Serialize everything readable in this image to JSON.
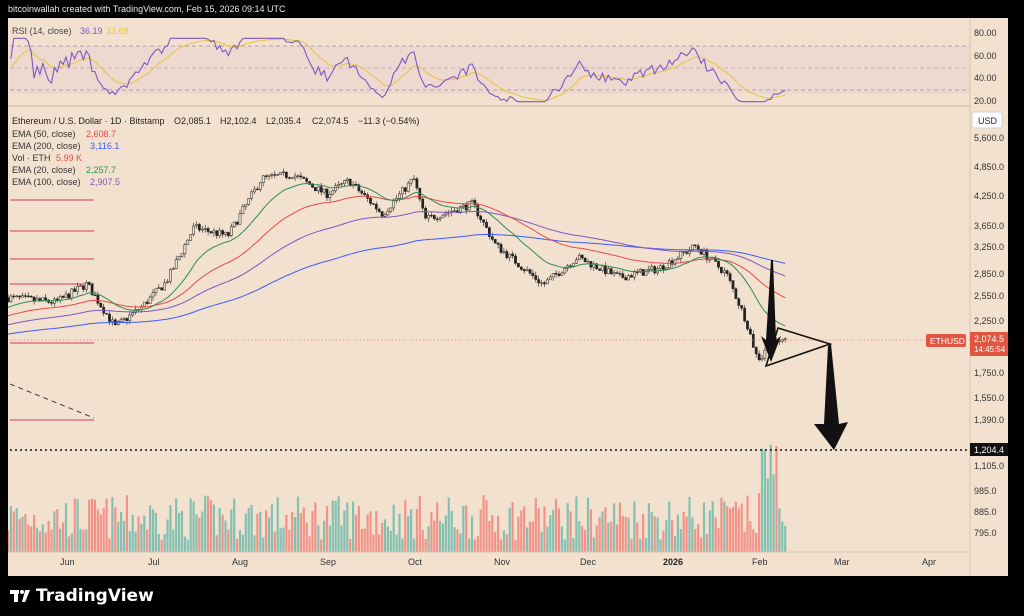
{
  "header": {
    "attribution": "bitcoinwallah created with TradingView.com, Feb 15, 2026 09:14 UTC"
  },
  "footer": {
    "brand": "TradingView"
  },
  "rsi": {
    "label": "RSI (14, close)",
    "value": "36.19",
    "signal": "33.68",
    "color": "#7e57c2",
    "signal_color": "#e8c547",
    "axis_ticks": [
      "80.00",
      "60.00",
      "40.00",
      "20.00"
    ]
  },
  "legend": {
    "symbol_line": "Ethereum / U.S. Dollar · 1D · Bitstamp",
    "ohlc": {
      "o": "O2,085.1",
      "h": "H2,102.4",
      "l": "L2,035.4",
      "c": "C2,074.5",
      "chg": "−11.3 (−0.54%)"
    },
    "indicators": [
      {
        "label": "EMA (50, close)",
        "value": "2,608.7",
        "color": "#e84a4a"
      },
      {
        "label": "EMA (200, close)",
        "value": "3,116.1",
        "color": "#3d5afe"
      },
      {
        "label": "Vol · ETH",
        "value": "5.99 K",
        "color": "#e84a4a"
      },
      {
        "label": "EMA (20, close)",
        "value": "2,257.7",
        "color": "#2e8b57"
      },
      {
        "label": "EMA (100, close)",
        "value": "2,907.5",
        "color": "#7e57c2"
      }
    ]
  },
  "price_axis": {
    "currency": "USD",
    "ticks": [
      "5,600.0",
      "4,850.0",
      "4,250.0",
      "3,650.0",
      "3,250.0",
      "2,850.0",
      "2,550.0",
      "2,250.0",
      "1,750.0",
      "1,550.0",
      "1,390.0",
      "1,105.0",
      "985.0",
      "885.0",
      "795.0"
    ],
    "current_price": "2,074.5",
    "countdown": "14:45:54",
    "symbol_tag": "ETHUSD",
    "target_level": "1,204.4"
  },
  "time_axis": {
    "labels": [
      "Jun",
      "Jul",
      "Aug",
      "Sep",
      "Oct",
      "Nov",
      "Dec",
      "2026",
      "Feb",
      "Mar",
      "Apr"
    ]
  },
  "chart_data": {
    "type": "candlestick",
    "symbol": "Ethereum / U.S. Dollar",
    "interval": "1D",
    "exchange": "Bitstamp",
    "y_scale": "log",
    "close_path": [
      [
        "2025-05-15",
        2580
      ],
      [
        "2025-06-01",
        2520
      ],
      [
        "2025-06-12",
        2760
      ],
      [
        "2025-06-22",
        2230
      ],
      [
        "2025-07-01",
        2450
      ],
      [
        "2025-07-10",
        2780
      ],
      [
        "2025-07-20",
        3650
      ],
      [
        "2025-08-01",
        3500
      ],
      [
        "2025-08-13",
        4650
      ],
      [
        "2025-08-24",
        4750
      ],
      [
        "2025-09-05",
        4300
      ],
      [
        "2025-09-13",
        4600
      ],
      [
        "2025-09-25",
        3900
      ],
      [
        "2025-10-06",
        4650
      ],
      [
        "2025-10-10",
        3800
      ],
      [
        "2025-10-27",
        4100
      ],
      [
        "2025-11-04",
        3350
      ],
      [
        "2025-11-21",
        2750
      ],
      [
        "2025-12-03",
        3150
      ],
      [
        "2025-12-18",
        2850
      ],
      [
        "2026-01-01",
        2980
      ],
      [
        "2026-01-14",
        3330
      ],
      [
        "2026-01-25",
        2900
      ],
      [
        "2026-02-01",
        2300
      ],
      [
        "2026-02-05",
        1900
      ],
      [
        "2026-02-10",
        2050
      ],
      [
        "2026-02-15",
        2074.5
      ]
    ],
    "last": {
      "open": 2085.1,
      "high": 2102.4,
      "low": 2035.4,
      "close": 2074.5,
      "change": -11.3,
      "change_pct": -0.54
    },
    "ema": [
      {
        "name": "EMA (50, close)",
        "last": 2608.7
      },
      {
        "name": "EMA (200, close)",
        "last": 3116.1
      },
      {
        "name": "EMA (20, close)",
        "last": 2257.7
      },
      {
        "name": "EMA (100, close)",
        "last": 2907.5
      }
    ],
    "rsi": {
      "length": 14,
      "last": 36.19,
      "signal_last": 33.68,
      "bands": [
        70,
        50,
        30
      ]
    },
    "volume_last": "5.99 K",
    "target_price": 1204.4,
    "annotation": "symmetrical triangle with projected breakdown arrow toward 1,204.4",
    "grid": false
  }
}
